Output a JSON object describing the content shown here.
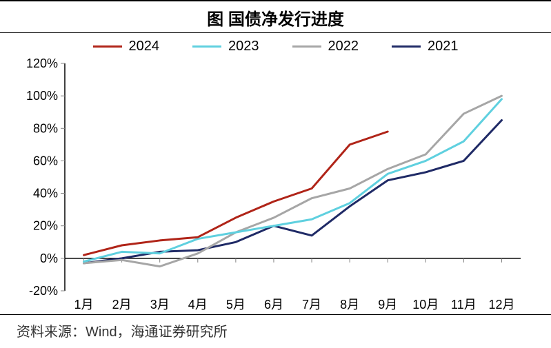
{
  "title": "图 国债净发行进度",
  "source": "资料来源：Wind，海通证券研究所",
  "chart": {
    "type": "line",
    "background_color": "#ffffff",
    "axis_color": "#000000",
    "axis_width": 1.5,
    "tick_color": "#808080",
    "grid": false,
    "title_fontsize": 24,
    "label_fontsize": 18,
    "legend_fontsize": 20,
    "line_width": 3,
    "x_categories": [
      "1月",
      "2月",
      "3月",
      "4月",
      "5月",
      "6月",
      "7月",
      "8月",
      "9月",
      "10月",
      "11月",
      "12月"
    ],
    "y": {
      "min": -20,
      "max": 120,
      "tick_step": 20,
      "ticks": [
        "-20%",
        "0%",
        "20%",
        "40%",
        "60%",
        "80%",
        "100%",
        "120%"
      ],
      "suffix": "%"
    },
    "series": [
      {
        "name": "2024",
        "color": "#b02418",
        "values": [
          2,
          8,
          11,
          13,
          25,
          35,
          43,
          70,
          78
        ]
      },
      {
        "name": "2023",
        "color": "#5fd0df",
        "values": [
          -2,
          4,
          3,
          12,
          16,
          20,
          24,
          34,
          52,
          60,
          72,
          98
        ]
      },
      {
        "name": "2022",
        "color": "#a6a6a6",
        "values": [
          -3,
          -1,
          -5,
          3,
          16,
          25,
          37,
          43,
          55,
          64,
          89,
          100
        ]
      },
      {
        "name": "2021",
        "color": "#1f2a66",
        "values": [
          -3,
          0,
          4,
          5,
          10,
          20,
          14,
          32,
          48,
          53,
          60,
          85
        ]
      }
    ]
  }
}
